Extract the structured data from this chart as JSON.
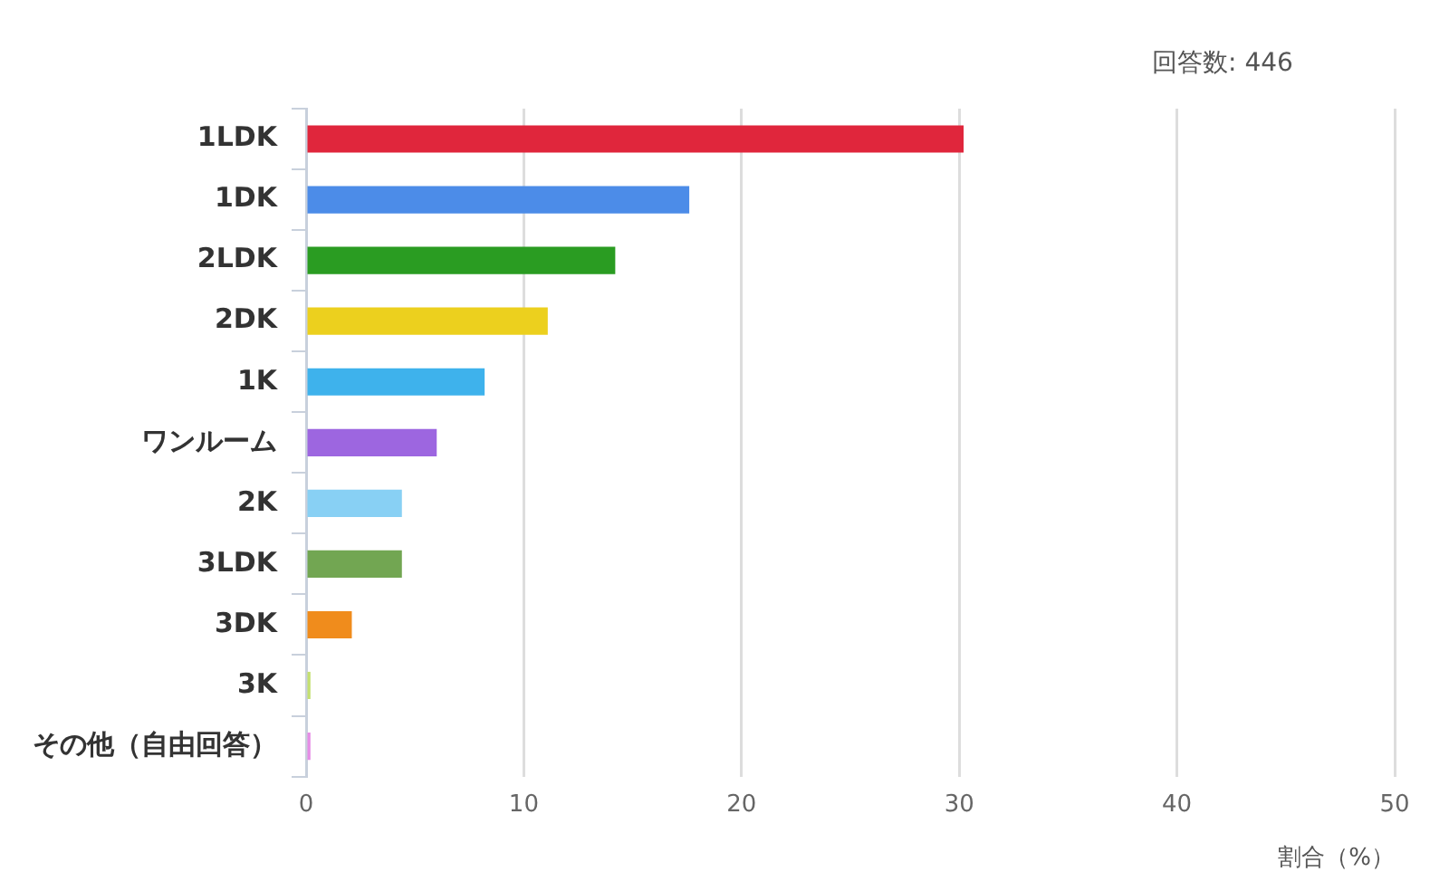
{
  "chart_data": {
    "type": "bar",
    "orientation": "horizontal",
    "categories": [
      "1LDK",
      "1DK",
      "2LDK",
      "2DK",
      "1K",
      "ワンルーム",
      "2K",
      "3LDK",
      "3DK",
      "3K",
      "その他（自由回答）"
    ],
    "values": [
      30.2,
      17.6,
      14.2,
      11.1,
      8.2,
      6.0,
      4.4,
      4.4,
      2.1,
      0.2,
      0.2
    ],
    "colors": [
      "#e0263c",
      "#4c8ce8",
      "#2a9c22",
      "#ecd01e",
      "#3eb2ec",
      "#9d66e0",
      "#88d0f4",
      "#72a652",
      "#f08c1c",
      "#c4e070",
      "#e68ce6"
    ],
    "xlim": [
      0,
      50
    ],
    "xticks": [
      0,
      10,
      20,
      30,
      40,
      50
    ],
    "xlabel": "割合（%）",
    "grid": "x",
    "legend": false,
    "annotations": [
      "回答数: 446"
    ]
  }
}
